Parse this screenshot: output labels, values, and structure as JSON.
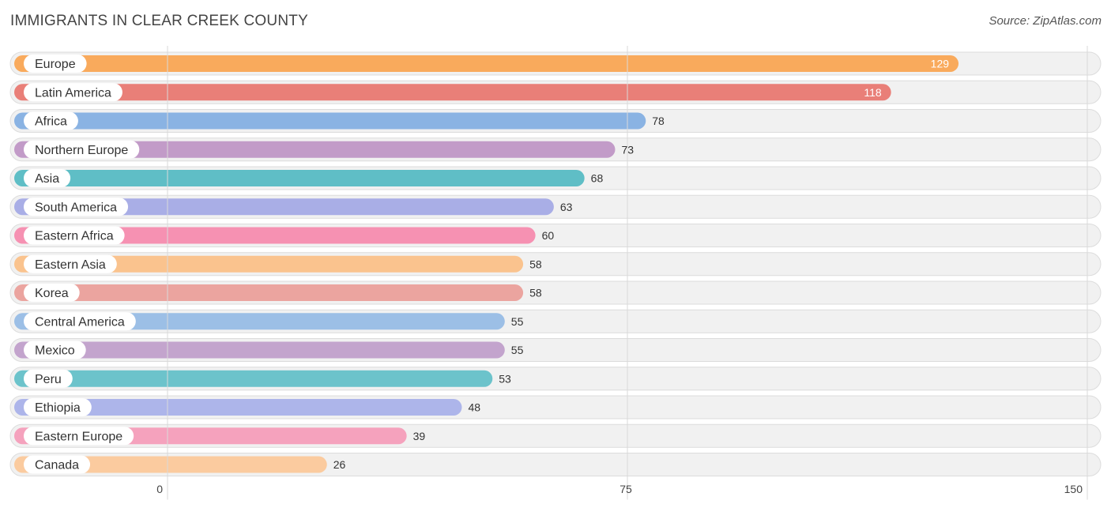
{
  "header": {
    "title": "IMMIGRANTS IN CLEAR CREEK COUNTY",
    "source": "Source: ZipAtlas.com"
  },
  "chart_data": {
    "type": "bar",
    "orientation": "horizontal",
    "title": "IMMIGRANTS IN CLEAR CREEK COUNTY",
    "categories": [
      "Europe",
      "Latin America",
      "Africa",
      "Northern Europe",
      "Asia",
      "South America",
      "Eastern Africa",
      "Eastern Asia",
      "Korea",
      "Central America",
      "Mexico",
      "Peru",
      "Ethiopia",
      "Eastern Europe",
      "Canada"
    ],
    "values": [
      129,
      118,
      78,
      73,
      68,
      63,
      60,
      58,
      58,
      55,
      55,
      53,
      48,
      39,
      26
    ],
    "colors": [
      "#f9aa5c",
      "#e97f78",
      "#8ab3e3",
      "#c29bc8",
      "#5fbec6",
      "#a9aee6",
      "#f691b2",
      "#fac38e",
      "#eba49f",
      "#9cbfe6",
      "#c3a4cd",
      "#6cc3cb",
      "#adb5ea",
      "#f5a2bd",
      "#fbcb9f"
    ],
    "xlim": [
      0,
      150
    ],
    "xticks": [
      0,
      75,
      150
    ],
    "grid": true,
    "legend": "none"
  }
}
